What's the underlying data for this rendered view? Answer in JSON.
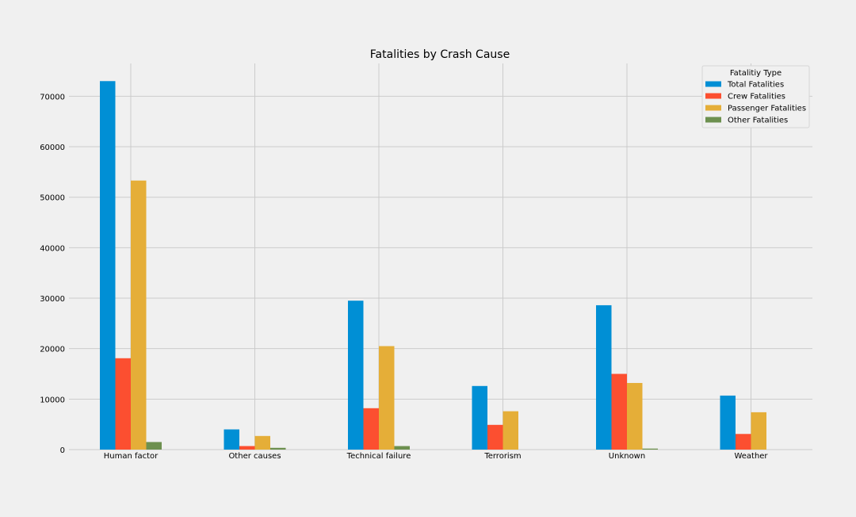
{
  "chart_data": {
    "type": "bar",
    "title": "Fatalities by Crash Cause",
    "xlabel": "",
    "ylabel": "",
    "ylim": [
      0,
      76500
    ],
    "yticks": [
      0,
      10000,
      20000,
      30000,
      40000,
      50000,
      60000,
      70000
    ],
    "grid": true,
    "legend_placement": "top-right",
    "legend_title": "Fatalitiy Type",
    "categories": [
      "Human factor",
      "Other causes",
      "Technical failure",
      "Terrorism",
      "Unknown",
      "Weather"
    ],
    "series": [
      {
        "name": "Total Fatalities",
        "color": "#008fd5",
        "values": [
          73000,
          4000,
          29500,
          12600,
          28600,
          10700
        ]
      },
      {
        "name": "Crew Fatalities",
        "color": "#fc4f30",
        "values": [
          18100,
          700,
          8200,
          4900,
          15000,
          3100
        ]
      },
      {
        "name": "Passenger Fatalities",
        "color": "#e5ae38",
        "values": [
          53300,
          2700,
          20500,
          7600,
          13200,
          7400
        ]
      },
      {
        "name": "Other Fatalities",
        "color": "#6d904f",
        "values": [
          1500,
          350,
          700,
          0,
          200,
          0
        ]
      }
    ]
  }
}
